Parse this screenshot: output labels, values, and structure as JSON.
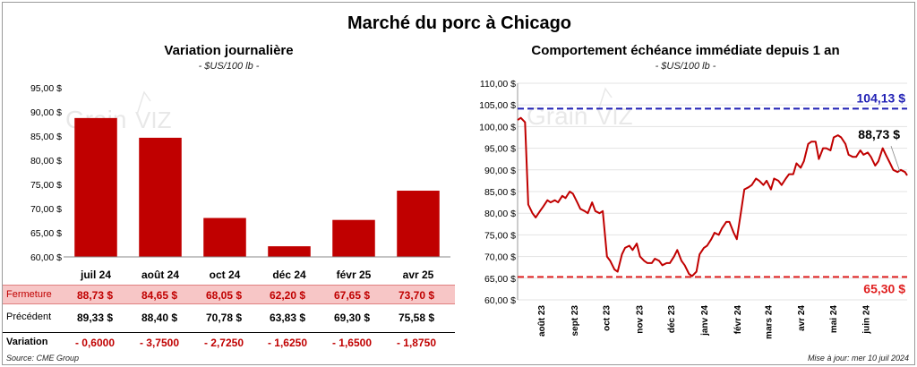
{
  "title": "Marché du porc à Chicago",
  "left_panel": {
    "title": "Variation  journalière",
    "unit": "- $US/100 lb -"
  },
  "right_panel": {
    "title": "Comportement  échéance immédiate depuis 1 an",
    "unit": "- $US/100 lb -"
  },
  "table": {
    "rows": [
      {
        "label": "Fermeture",
        "values": [
          "88,73  $",
          "84,65  $",
          "68,05  $",
          "62,20  $",
          "67,65  $",
          "73,70  $"
        ]
      },
      {
        "label": "Précédent",
        "values": [
          "89,33  $",
          "88,40  $",
          "70,78  $",
          "63,83  $",
          "69,30  $",
          "75,58  $"
        ]
      },
      {
        "label": "Variation",
        "values": [
          "- 0,6000",
          "- 3,7500",
          "- 2,7250",
          "- 1,6250",
          "- 1,6500",
          "- 1,8750"
        ]
      }
    ]
  },
  "footer": {
    "source": "Source: CME Group",
    "updated": "Mise à jour: mer 10 juil 2024"
  },
  "colors": {
    "bar": "#c00000",
    "line": "#c00000",
    "high": "#1f1fb4",
    "low": "#e02020",
    "table_highlight": "#f7c6c6"
  },
  "chart_data": [
    {
      "type": "bar",
      "categories": [
        "juil 24",
        "août 24",
        "oct 24",
        "déc 24",
        "févr 25",
        "avr 25"
      ],
      "values": [
        88.73,
        84.65,
        68.05,
        62.2,
        67.65,
        73.7
      ],
      "ylim": [
        60,
        95
      ],
      "yticks": [
        "60,00 $",
        "65,00 $",
        "70,00 $",
        "75,00 $",
        "80,00 $",
        "85,00 $",
        "90,00 $",
        "95,00 $"
      ]
    },
    {
      "type": "line",
      "ylim": [
        60,
        110
      ],
      "yticks": [
        "60,00 $",
        "65,00 $",
        "70,00 $",
        "75,00 $",
        "80,00 $",
        "85,00 $",
        "90,00 $",
        "95,00 $",
        "100,00 $",
        "105,00 $",
        "110,00 $"
      ],
      "xticks": [
        "août 23",
        "sept 23",
        "oct 23",
        "nov 23",
        "déc 23",
        "janv 24",
        "févr 24",
        "mars 24",
        "avr 24",
        "mai 24",
        "juin 24"
      ],
      "x": [
        "2023-07-10",
        "2023-07-13",
        "2023-07-17",
        "2023-07-20",
        "2023-07-24",
        "2023-07-27",
        "2023-07-31",
        "2023-08-03",
        "2023-08-07",
        "2023-08-10",
        "2023-08-14",
        "2023-08-17",
        "2023-08-21",
        "2023-08-24",
        "2023-08-28",
        "2023-08-31",
        "2023-09-04",
        "2023-09-07",
        "2023-09-11",
        "2023-09-14",
        "2023-09-18",
        "2023-09-21",
        "2023-09-25",
        "2023-09-28",
        "2023-10-02",
        "2023-10-05",
        "2023-10-09",
        "2023-10-12",
        "2023-10-16",
        "2023-10-19",
        "2023-10-23",
        "2023-10-26",
        "2023-10-30",
        "2023-11-02",
        "2023-11-06",
        "2023-11-09",
        "2023-11-13",
        "2023-11-16",
        "2023-11-20",
        "2023-11-23",
        "2023-11-27",
        "2023-11-30",
        "2023-12-04",
        "2023-12-07",
        "2023-12-11",
        "2023-12-14",
        "2023-12-18",
        "2023-12-21",
        "2023-12-25",
        "2023-12-28",
        "2024-01-01",
        "2024-01-04",
        "2024-01-08",
        "2024-01-11",
        "2024-01-15",
        "2024-01-18",
        "2024-01-22",
        "2024-01-25",
        "2024-01-29",
        "2024-02-01",
        "2024-02-05",
        "2024-02-08",
        "2024-02-12",
        "2024-02-15",
        "2024-02-19",
        "2024-02-22",
        "2024-02-26",
        "2024-02-29",
        "2024-03-04",
        "2024-03-07",
        "2024-03-11",
        "2024-03-14",
        "2024-03-18",
        "2024-03-21",
        "2024-03-25",
        "2024-03-28",
        "2024-04-01",
        "2024-04-04",
        "2024-04-08",
        "2024-04-11",
        "2024-04-15",
        "2024-04-18",
        "2024-04-22",
        "2024-04-25",
        "2024-04-29",
        "2024-05-02",
        "2024-05-06",
        "2024-05-09",
        "2024-05-13",
        "2024-05-16",
        "2024-05-20",
        "2024-05-23",
        "2024-05-27",
        "2024-05-30",
        "2024-06-03",
        "2024-06-06",
        "2024-06-10",
        "2024-06-13",
        "2024-06-17",
        "2024-06-20",
        "2024-06-24",
        "2024-06-27",
        "2024-07-01",
        "2024-07-04",
        "2024-07-08",
        "2024-07-10"
      ],
      "y": [
        101.5,
        102.0,
        101.0,
        82.0,
        80.0,
        79.0,
        80.5,
        81.5,
        83.0,
        82.5,
        83.0,
        82.5,
        84.0,
        83.5,
        85.0,
        84.5,
        82.5,
        81.0,
        80.5,
        80.0,
        82.5,
        80.5,
        80.0,
        80.5,
        70.0,
        69.0,
        67.0,
        66.5,
        70.5,
        72.0,
        72.5,
        71.5,
        73.0,
        70.0,
        69.0,
        68.5,
        68.5,
        69.5,
        69.0,
        68.0,
        68.5,
        68.5,
        70.0,
        71.5,
        69.0,
        68.0,
        66.0,
        65.5,
        66.5,
        70.5,
        72.0,
        72.5,
        74.0,
        75.5,
        75.0,
        76.5,
        78.0,
        78.0,
        75.5,
        74.0,
        80.5,
        85.5,
        86.0,
        86.5,
        88.0,
        87.5,
        86.5,
        87.5,
        85.5,
        88.0,
        87.5,
        86.5,
        88.0,
        89.0,
        89.0,
        91.5,
        90.5,
        92.0,
        96.0,
        96.5,
        96.5,
        92.5,
        95.0,
        95.0,
        94.5,
        97.5,
        98.0,
        97.5,
        96.0,
        93.5,
        93.0,
        93.0,
        94.5,
        93.5,
        94.0,
        93.0,
        91.0,
        92.0,
        95.0,
        93.5,
        91.5,
        90.0,
        89.5,
        90.0,
        89.5,
        88.73
      ],
      "reference_lines": [
        {
          "value": 104.13,
          "label": "104,13 $"
        },
        {
          "value": 65.3,
          "label": "65,30 $"
        }
      ],
      "last_label": "88,73 $"
    }
  ]
}
